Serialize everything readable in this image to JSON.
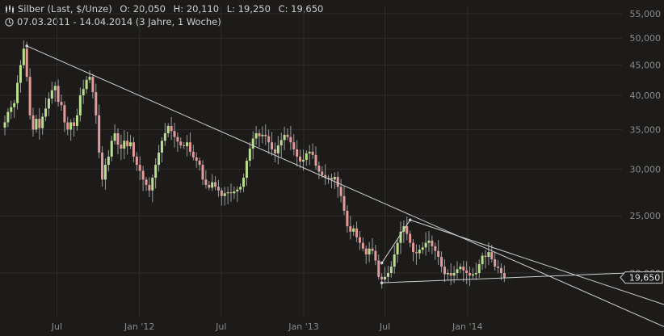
{
  "header": {
    "instrument": "Silber (Last, $/Unze)",
    "open": "O: 20,050",
    "high": "H: 20,110",
    "low": "L: 19,250",
    "close": "C: 19,650",
    "period": "07.03.2011 - 14.04.2014 (3 Jahre, 1 Woche)",
    "chart_icon": "candlestick-icon",
    "clock_icon": "clock-icon"
  },
  "chart_data": {
    "type": "candlestick",
    "scale": "log",
    "ylim": [
      19000,
      56000
    ],
    "y_ticks": [
      {
        "value": 55000,
        "label": "55,000"
      },
      {
        "value": 50000,
        "label": "50,000"
      },
      {
        "value": 45000,
        "label": "45,000"
      },
      {
        "value": 40000,
        "label": "40,000"
      },
      {
        "value": 35000,
        "label": "35,000"
      },
      {
        "value": 30000,
        "label": "30,000"
      },
      {
        "value": 25000,
        "label": "25,000"
      },
      {
        "value": 20000,
        "label": "20,000"
      }
    ],
    "x_range": [
      "2011-03-07",
      "2014-04-14"
    ],
    "x_ticks": [
      {
        "date": "2011-07-01",
        "label": "Jul"
      },
      {
        "date": "2012-01-01",
        "label": "Jan '12"
      },
      {
        "date": "2012-07-01",
        "label": "Jul"
      },
      {
        "date": "2013-01-01",
        "label": "Jan '13"
      },
      {
        "date": "2013-07-01",
        "label": "Jul"
      },
      {
        "date": "2014-01-01",
        "label": "Jan '14"
      }
    ],
    "last_price_label": "19,650",
    "last_price": 19650,
    "colors": {
      "up": "#b8e08a",
      "down": "#e39a9a",
      "trendline": "#cfcfcf",
      "grid": "#2e2d2c",
      "axis_text": "#8a8a8a"
    },
    "weekly_close": [
      36000,
      37500,
      38200,
      38800,
      42000,
      45000,
      48000,
      43000,
      37000,
      35000,
      36500,
      35200,
      36800,
      38000,
      39500,
      40800,
      41500,
      39000,
      38500,
      36000,
      35000,
      36000,
      35500,
      37000,
      40000,
      41000,
      42500,
      43000,
      40500,
      37000,
      32000,
      28800,
      30500,
      31500,
      33500,
      34500,
      33000,
      32500,
      33500,
      32800,
      33300,
      31500,
      30500,
      29800,
      28800,
      28200,
      27600,
      29000,
      30500,
      32000,
      33500,
      34500,
      35500,
      34800,
      34000,
      33400,
      32900,
      32800,
      33300,
      32100,
      31400,
      31000,
      30500,
      28800,
      28200,
      27900,
      28500,
      28000,
      27600,
      27000,
      27300,
      27400,
      27300,
      27500,
      27700,
      28000,
      29000,
      31000,
      32500,
      33800,
      34500,
      34100,
      34300,
      34100,
      33300,
      32400,
      31900,
      32900,
      33600,
      34300,
      34000,
      33300,
      32400,
      31500,
      30900,
      31100,
      31900,
      32100,
      31700,
      30400,
      29700,
      29300,
      29000,
      29000,
      28800,
      29100,
      28000,
      27000,
      25500,
      24000,
      23500,
      23800,
      23000,
      22500,
      22000,
      21500,
      22000,
      21800,
      21000,
      19700,
      19500,
      19700,
      20000,
      20500,
      21500,
      22500,
      23500,
      24000,
      23300,
      22500,
      21700,
      21600,
      21900,
      22100,
      22500,
      22700,
      22200,
      21800,
      21300,
      20500,
      19900,
      20000,
      19800,
      20000,
      20300,
      20500,
      20200,
      20000,
      19800,
      19900,
      20000,
      20700,
      21400,
      21300,
      21700,
      21100,
      20500,
      20400,
      20000,
      19650
    ],
    "trendlines": [
      {
        "from": {
          "date": "2011-04-25",
          "value": 48500
        },
        "to": {
          "date": "2014-04-14",
          "value": 21000
        },
        "extend": "right"
      },
      {
        "from": {
          "date": "2013-06-24",
          "value": 20800
        },
        "to": {
          "date": "2013-08-26",
          "value": 24600
        },
        "extend": "none"
      },
      {
        "from": {
          "date": "2013-06-24",
          "value": 19250
        },
        "to": {
          "date": "2014-04-14",
          "value": 19650
        },
        "extend": "right"
      },
      {
        "from": {
          "date": "2013-08-26",
          "value": 24600
        },
        "to": {
          "date": "2014-04-14",
          "value": 21500
        },
        "extend": "right"
      }
    ]
  }
}
